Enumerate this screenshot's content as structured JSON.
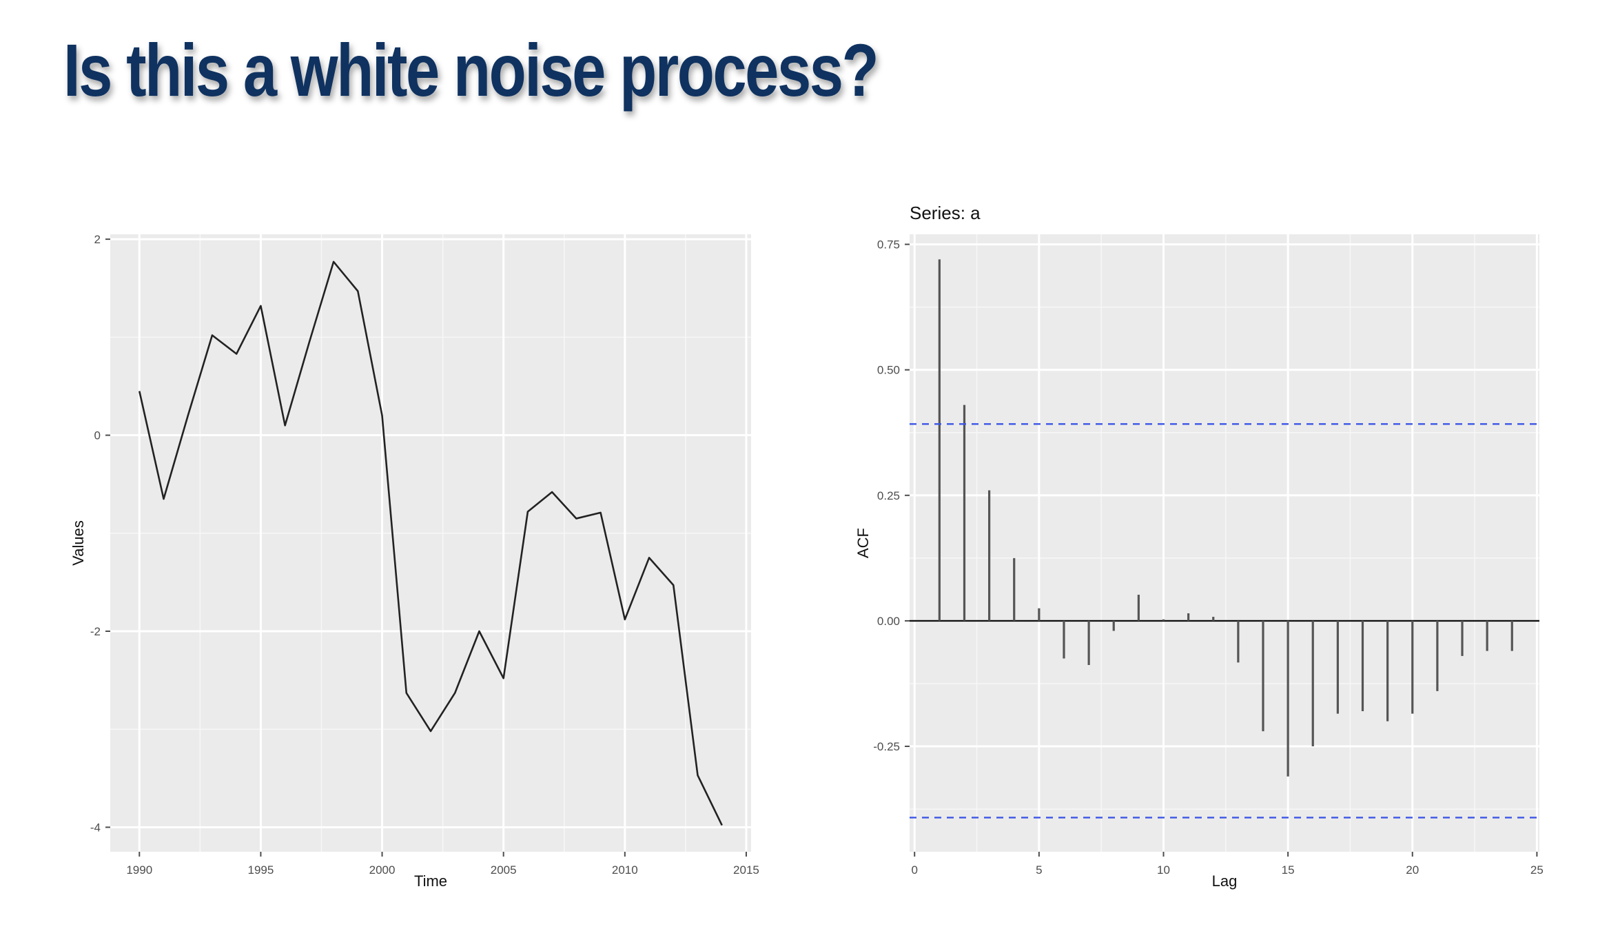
{
  "slide": {
    "title": "Is this a white noise process?"
  },
  "chart_data": [
    {
      "type": "line",
      "title": "",
      "xlabel": "Time",
      "ylabel": "Values",
      "xlim": [
        1988.8,
        2015.2
      ],
      "ylim": [
        -4.25,
        2.05
      ],
      "xticks": [
        1990,
        1995,
        2000,
        2005,
        2010,
        2015
      ],
      "yticks": [
        2,
        0,
        -2,
        -4
      ],
      "grid": true,
      "x": [
        1990,
        1991,
        1992,
        1993,
        1994,
        1995,
        1996,
        1997,
        1998,
        1999,
        2000,
        2001,
        2002,
        2003,
        2004,
        2005,
        2006,
        2007,
        2008,
        2009,
        2010,
        2011,
        2012,
        2013,
        2014
      ],
      "y": [
        0.45,
        -0.65,
        0.2,
        1.02,
        0.83,
        1.32,
        0.1,
        0.95,
        1.77,
        1.47,
        0.2,
        -2.63,
        -3.02,
        -2.63,
        -2.0,
        -2.48,
        -0.78,
        -0.58,
        -0.85,
        -0.79,
        -1.88,
        -1.25,
        -1.53,
        -3.47,
        -3.98
      ]
    },
    {
      "type": "bar",
      "title": "Series: a",
      "xlabel": "Lag",
      "ylabel": "ACF",
      "xlim": [
        -0.2,
        25.1
      ],
      "ylim": [
        -0.46,
        0.77
      ],
      "xticks": [
        0,
        5,
        10,
        15,
        20,
        25
      ],
      "yticks": [
        0.75,
        0.5,
        0.25,
        0.0,
        -0.25
      ],
      "ytick_labels": [
        "0.75",
        "0.50",
        "0.25",
        "0.00",
        "-0.25"
      ],
      "grid": true,
      "confidence_bound": 0.392,
      "lags": [
        1,
        2,
        3,
        4,
        5,
        6,
        7,
        8,
        9,
        10,
        11,
        12,
        13,
        14,
        15,
        16,
        17,
        18,
        19,
        20,
        21,
        22,
        23,
        24
      ],
      "values": [
        0.72,
        0.43,
        0.26,
        0.125,
        0.025,
        -0.075,
        -0.088,
        -0.02,
        0.052,
        0.003,
        0.015,
        0.008,
        -0.083,
        -0.22,
        -0.31,
        -0.25,
        -0.185,
        -0.18,
        -0.2,
        -0.185,
        -0.14,
        -0.07,
        -0.06,
        -0.06
      ],
      "colors": {
        "bound": "#3b55e6",
        "stem": "#555555"
      }
    }
  ]
}
